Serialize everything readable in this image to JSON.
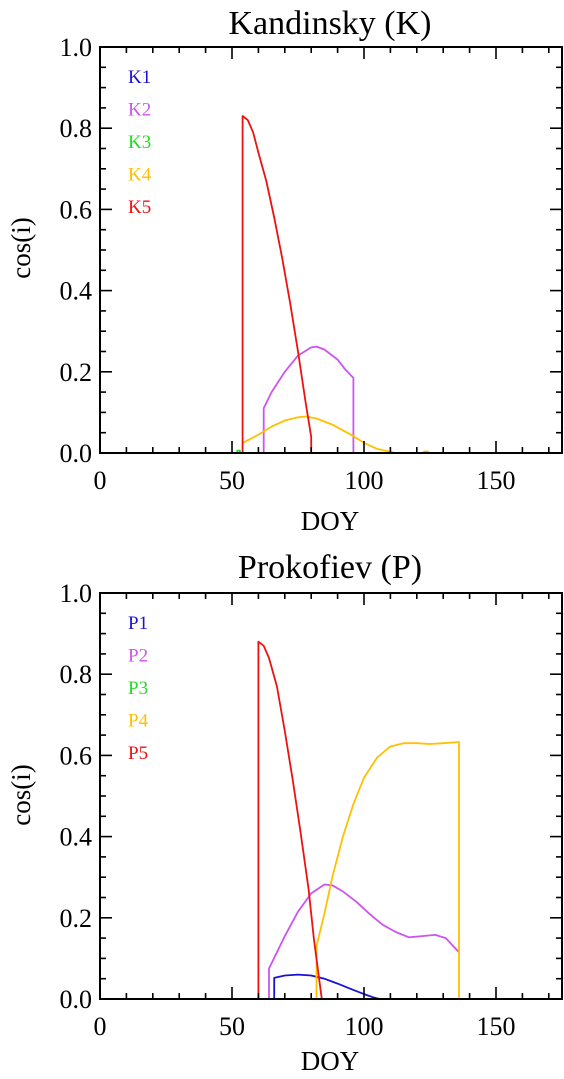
{
  "chart_data": [
    {
      "type": "line",
      "title": "Kandinsky (K)",
      "xlabel": "DOY",
      "ylabel": "cos(i)",
      "xlim": [
        0,
        175
      ],
      "ylim": [
        0,
        1.0
      ],
      "xticks": [
        0,
        50,
        100,
        150
      ],
      "xtick_labels": [
        "0",
        "50",
        "100",
        "150"
      ],
      "yticks": [
        0,
        0.2,
        0.4,
        0.6,
        0.8,
        1.0
      ],
      "ytick_labels": [
        "0.0",
        "0.2",
        "0.4",
        "0.6",
        "0.8",
        "1.0"
      ],
      "grid": false,
      "legend_position": "top-left",
      "series": [
        {
          "name": "K1",
          "color": "#1a10d6",
          "points": []
        },
        {
          "name": "K2",
          "color": "#cc55ee",
          "points": [
            [
              62,
              0
            ],
            [
              62,
              0.11
            ],
            [
              65,
              0.15
            ],
            [
              70,
              0.2
            ],
            [
              75,
              0.24
            ],
            [
              80,
              0.26
            ],
            [
              82,
              0.262
            ],
            [
              85,
              0.255
            ],
            [
              90,
              0.23
            ],
            [
              93,
              0.205
            ],
            [
              96,
              0.185
            ],
            [
              96,
              0
            ]
          ]
        },
        {
          "name": "K3",
          "color": "#22dd22",
          "points": [
            [
              52,
              0
            ],
            [
              52,
              0.006
            ],
            [
              53,
              0.006
            ],
            [
              53,
              0
            ]
          ]
        },
        {
          "name": "K4",
          "color": "#ffc000",
          "points": [
            [
              54,
              0.025
            ],
            [
              60,
              0.045
            ],
            [
              65,
              0.065
            ],
            [
              70,
              0.08
            ],
            [
              75,
              0.088
            ],
            [
              78,
              0.09
            ],
            [
              82,
              0.085
            ],
            [
              88,
              0.07
            ],
            [
              95,
              0.045
            ],
            [
              100,
              0.025
            ],
            [
              105,
              0.01
            ],
            [
              110,
              0.003
            ],
            [
              112,
              0
            ],
            [
              122,
              0
            ],
            [
              123,
              0.004
            ],
            [
              124,
              0.004
            ],
            [
              125,
              0
            ]
          ]
        },
        {
          "name": "K5",
          "color": "#ee1111",
          "points": [
            [
              54,
              0
            ],
            [
              54,
              0.83
            ],
            [
              56,
              0.82
            ],
            [
              58,
              0.79
            ],
            [
              60,
              0.74
            ],
            [
              63,
              0.67
            ],
            [
              66,
              0.58
            ],
            [
              69,
              0.48
            ],
            [
              72,
              0.37
            ],
            [
              75,
              0.25
            ],
            [
              78,
              0.12
            ],
            [
              80,
              0.04
            ],
            [
              80,
              0
            ]
          ]
        }
      ]
    },
    {
      "type": "line",
      "title": "Prokofiev (P)",
      "xlabel": "DOY",
      "ylabel": "cos(i)",
      "xlim": [
        0,
        175
      ],
      "ylim": [
        0,
        1.0
      ],
      "xticks": [
        0,
        50,
        100,
        150
      ],
      "xtick_labels": [
        "0",
        "50",
        "100",
        "150"
      ],
      "yticks": [
        0,
        0.2,
        0.4,
        0.6,
        0.8,
        1.0
      ],
      "ytick_labels": [
        "0.0",
        "0.2",
        "0.4",
        "0.6",
        "0.8",
        "1.0"
      ],
      "grid": false,
      "legend_position": "top-left",
      "series": [
        {
          "name": "P1",
          "color": "#1a10d6",
          "points": [
            [
              66,
              0
            ],
            [
              66,
              0.052
            ],
            [
              70,
              0.058
            ],
            [
              75,
              0.06
            ],
            [
              80,
              0.058
            ],
            [
              85,
              0.05
            ],
            [
              90,
              0.038
            ],
            [
              95,
              0.025
            ],
            [
              100,
              0.012
            ],
            [
              104,
              0.003
            ],
            [
              106,
              0
            ]
          ]
        },
        {
          "name": "P2",
          "color": "#cc55ee",
          "points": [
            [
              64,
              0
            ],
            [
              64,
              0.075
            ],
            [
              67,
              0.115
            ],
            [
              70,
              0.155
            ],
            [
              75,
              0.215
            ],
            [
              80,
              0.26
            ],
            [
              85,
              0.282
            ],
            [
              88,
              0.28
            ],
            [
              92,
              0.265
            ],
            [
              97,
              0.24
            ],
            [
              102,
              0.21
            ],
            [
              107,
              0.183
            ],
            [
              112,
              0.165
            ],
            [
              117,
              0.152
            ],
            [
              122,
              0.155
            ],
            [
              127,
              0.158
            ],
            [
              131,
              0.15
            ],
            [
              136,
              0.115
            ]
          ]
        },
        {
          "name": "P3",
          "color": "#22dd22",
          "points": []
        },
        {
          "name": "P4",
          "color": "#ffc000",
          "points": [
            [
              82,
              0
            ],
            [
              82,
              0.13
            ],
            [
              85,
              0.21
            ],
            [
              88,
              0.3
            ],
            [
              92,
              0.4
            ],
            [
              96,
              0.48
            ],
            [
              100,
              0.545
            ],
            [
              105,
              0.595
            ],
            [
              110,
              0.622
            ],
            [
              115,
              0.63
            ],
            [
              120,
              0.63
            ],
            [
              125,
              0.628
            ],
            [
              130,
              0.63
            ],
            [
              136,
              0.633
            ],
            [
              136,
              0
            ]
          ]
        },
        {
          "name": "P5",
          "color": "#ee1111",
          "points": [
            [
              60,
              0
            ],
            [
              60,
              0.88
            ],
            [
              62,
              0.87
            ],
            [
              64,
              0.84
            ],
            [
              67,
              0.77
            ],
            [
              70,
              0.66
            ],
            [
              73,
              0.54
            ],
            [
              76,
              0.41
            ],
            [
              79,
              0.27
            ],
            [
              81,
              0.15
            ],
            [
              83,
              0.05
            ],
            [
              84,
              0
            ]
          ]
        }
      ]
    }
  ]
}
